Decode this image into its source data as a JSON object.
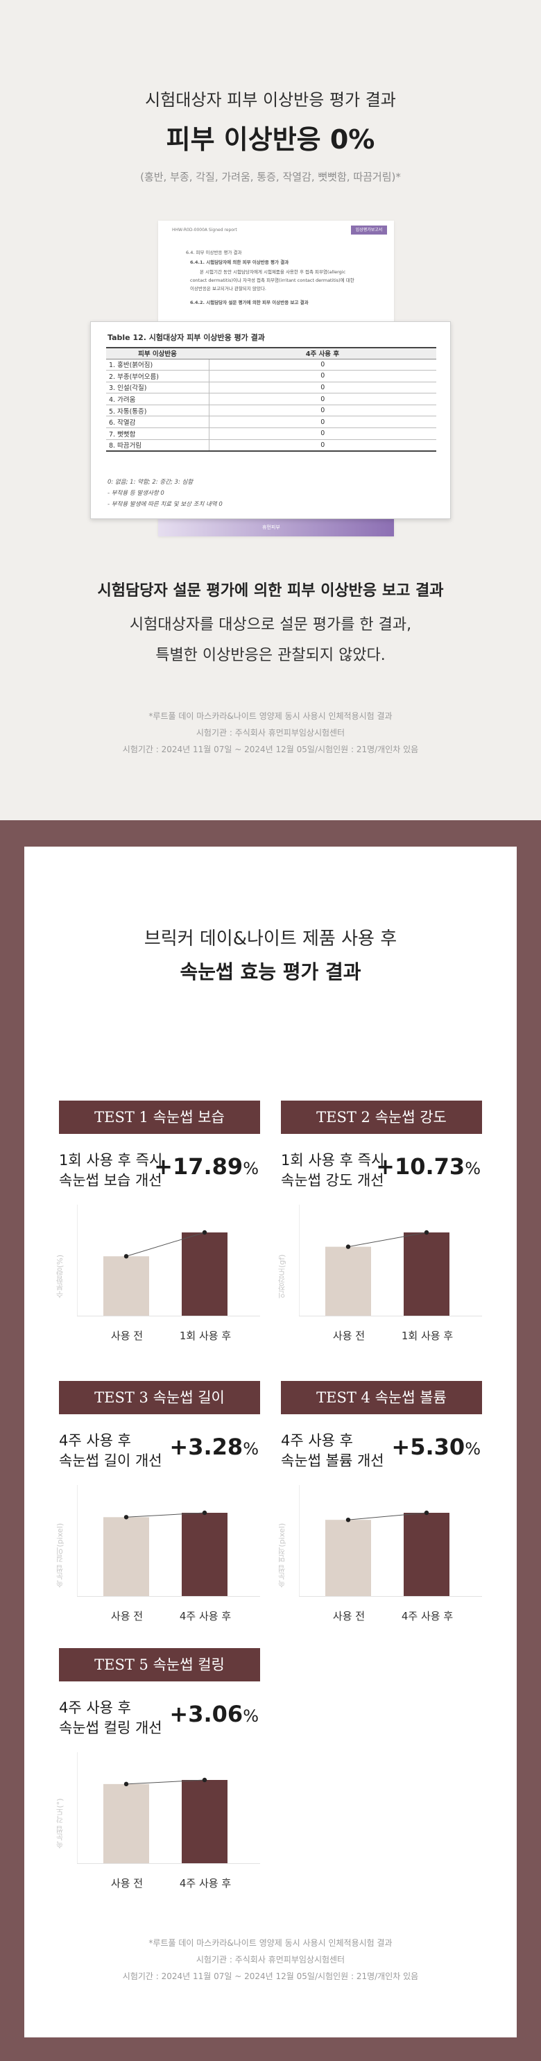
{
  "safety": {
    "title_line1": "시험대상자 피부 이상반응 평가 결과",
    "title_line2": "피부 이상반응 0%",
    "subtitle": "(홍반, 부종, 각질, 가려움, 통증, 작열감, 뻣뻣함, 따끔거림)*",
    "doc": {
      "header_left": "HHW-R0D-0000A Signed report",
      "header_right": "임상평가보고서",
      "lines": [
        "6.4.   피부 이상반응 평가 결과",
        "6.4.1.   시험담당자에 의한 피부 이상반응 평가 결과",
        "본 시험기간 동안 시험담당자에게 시험제품을 사용한 후 접촉 피부염(allergic",
        "contact dermatitis)이나 자극성 접촉 피부염(irritant contact dermatitis)에 대한",
        "이상반응은 보고되거나 관찰되지 않았다.",
        "6.4.2.   시험담당자 설문 평가에 의한 피부 이상반응 보고 결과"
      ],
      "logo": "휴먼피부",
      "table_caption": "Table 12.   시험대상자 피부 이상반응 평가 결과",
      "col_header1": "피부 이상반응",
      "col_header2": "4주 사용 후",
      "rows": [
        {
          "label": "1. 홍반(붉어짐)",
          "value": "0"
        },
        {
          "label": "2. 부종(부어오름)",
          "value": "0"
        },
        {
          "label": "3. 인설(각질)",
          "value": "0"
        },
        {
          "label": "4. 가려움",
          "value": "0"
        },
        {
          "label": "5. 자통(통증)",
          "value": "0"
        },
        {
          "label": "6. 작열감",
          "value": "0"
        },
        {
          "label": "7. 뻣뻣함",
          "value": "0"
        },
        {
          "label": "8. 따끔거림",
          "value": "0"
        }
      ],
      "notes": [
        "0: 없음; 1: 약함; 2: 중간; 3: 심함",
        "- 부작용 등 발생사항 0",
        "- 부작용 발생에 따른 치료 및 보상 조치 내역 0"
      ]
    },
    "heading": "시험담당자 설문 평가에 의한 피부 이상반응 보고 결과",
    "desc_line1": "시험대상자를 대상으로 설문 평가를 한 결과,",
    "desc_line2": "특별한 이상반응은 관찰되지 않았다.",
    "footnotes": [
      "*루트풀 데이 마스카라&나이트 영양제 동시 사용시 인체적용시험 결과",
      "시험기관 : 주식회사 휴먼피부임상시험센터",
      "시험기간 : 2024년 11월 07일 ~ 2024년 12월 05일/시험인원 : 21명/개인차 있음"
    ]
  },
  "efficacy": {
    "title_line1": "브릭커 데이&나이트 제품 사용 후",
    "title_line2": "속눈썹 효능 평가 결과",
    "bar_before_color": "#ddd2c9",
    "bar_after_color": "#653a3c",
    "tests": [
      {
        "test_en": "TEST 1",
        "test_ko": "속눈썹 보습",
        "line1": "1회 사용 후 즉시",
        "line2": "속눈썹 보습 개선",
        "sign": "+",
        "number": "17.89",
        "unit": "%",
        "ylabel": "수분함량(%)",
        "x_before": "사용 전",
        "x_after": "1회 사용 후",
        "chart_data": {
          "type": "bar",
          "categories": [
            "사용 전",
            "1회 사용 후"
          ],
          "values": [
            100,
            117.89
          ]
        }
      },
      {
        "test_en": "TEST 2",
        "test_ko": "속눈썹 강도",
        "line1": "1회 사용 후 즉시",
        "line2": "속눈썹 강도 개선",
        "sign": "+",
        "number": "10.73",
        "unit": "%",
        "ylabel": "인장강도(gf)",
        "x_before": "사용 전",
        "x_after": "1회 사용 후",
        "chart_data": {
          "type": "bar",
          "categories": [
            "사용 전",
            "1회 사용 후"
          ],
          "values": [
            100,
            110.73
          ]
        }
      },
      {
        "test_en": "TEST 3",
        "test_ko": "속눈썹 길이",
        "line1": "4주 사용 후",
        "line2": "속눈썹 길이 개선",
        "sign": "+",
        "number": "3.28",
        "unit": "%",
        "ylabel": "속눈썹 길이(pixel)",
        "x_before": "사용 전",
        "x_after": "4주 사용 후",
        "chart_data": {
          "type": "bar",
          "categories": [
            "사용 전",
            "4주 사용 후"
          ],
          "values": [
            100,
            103.28
          ]
        }
      },
      {
        "test_en": "TEST 4",
        "test_ko": "속눈썹 볼륨",
        "line1": "4주 사용 후",
        "line2": "속눈썹 볼륨 개선",
        "sign": "+",
        "number": "5.30",
        "unit": "%",
        "ylabel": "속눈썹 면적(pixel)",
        "x_before": "사용 전",
        "x_after": "4주 사용 후",
        "chart_data": {
          "type": "bar",
          "categories": [
            "사용 전",
            "4주 사용 후"
          ],
          "values": [
            100,
            105.3
          ]
        }
      },
      {
        "test_en": "TEST 5",
        "test_ko": "속눈썹 컬링",
        "line1": "4주 사용 후",
        "line2": "속눈썹 컬링 개선",
        "sign": "+",
        "number": "3.06",
        "unit": "%",
        "ylabel": "속눈썹 각도(°)",
        "x_before": "사용 전",
        "x_after": "4주 사용 후",
        "chart_data": {
          "type": "bar",
          "categories": [
            "사용 전",
            "4주 사용 후"
          ],
          "values": [
            100,
            103.06
          ]
        }
      }
    ],
    "footnotes": [
      "*루트풀 데이 마스카라&나이트 영양제 동시 사용시 인체적용시험 결과",
      "시험기관 : 주식회사 휴먼피부임상시험센터",
      "시험기간 : 2024년 11월 07일 ~ 2024년 12월 05일/시험인원 : 21명/개인차 있음"
    ]
  }
}
